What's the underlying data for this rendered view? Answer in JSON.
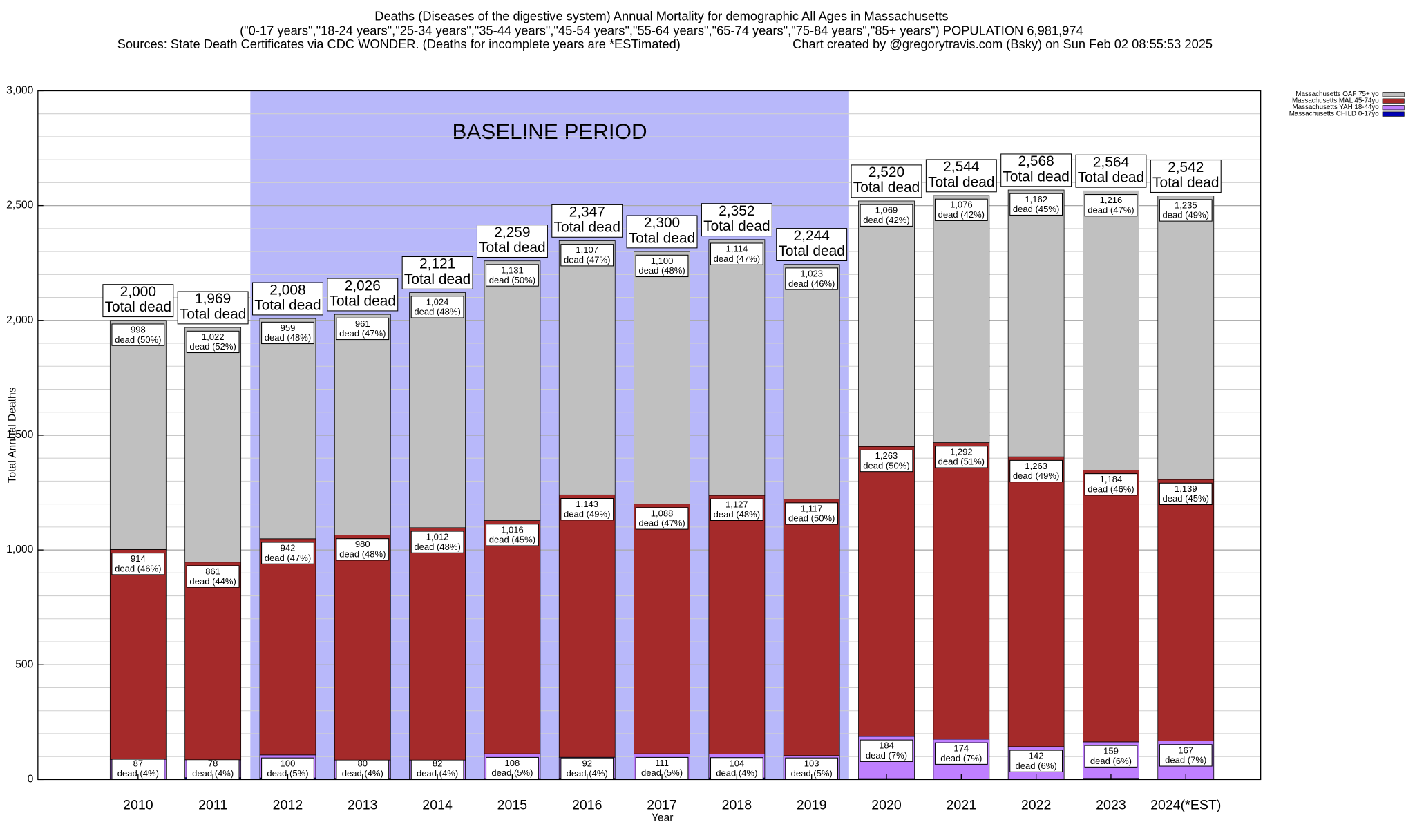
{
  "chart_data": {
    "type": "stacked_bar",
    "title": "Deaths (Diseases of the digestive system) Annual Mortality for demographic All Ages in Massachusetts",
    "subtitle": "(\"0-17 years\",\"18-24 years\",\"25-34 years\",\"35-44 years\",\"45-54 years\",\"55-64 years\",\"65-74 years\",\"75-84 years\",\"85+ years\") POPULATION 6,981,974",
    "source": "Sources: State Death Certificates via CDC WONDER. (Deaths for incomplete years are *ESTimated)",
    "credit": "Chart created by @gregorytravis.com (Bsky) on Sun Feb 02 08:55:53 2025",
    "xlabel": "Year",
    "ylabel": "Total Annual Deaths",
    "categories": [
      "2010",
      "2011",
      "2012",
      "2013",
      "2014",
      "2015",
      "2016",
      "2017",
      "2018",
      "2019",
      "2020",
      "2021",
      "2022",
      "2023",
      "2024(*EST)"
    ],
    "ylim": [
      0,
      3000
    ],
    "yticks": [
      0,
      500,
      {
        "value": 1000,
        "label": "1,000"
      },
      {
        "value": 1500,
        "label": "1,500"
      },
      {
        "value": 2000,
        "label": "2,000"
      },
      {
        "value": 2500,
        "label": "2,500"
      },
      {
        "value": 3000,
        "label": "3,000"
      }
    ],
    "grid": true,
    "minor_grid_step": 100,
    "legend": "upper right",
    "shaded_region": {
      "label": "BASELINE PERIOD",
      "from": "2012",
      "to": "2019",
      "color": "#b8b8fa"
    },
    "series": [
      {
        "name": "Massachusetts CHILD 0-17yo",
        "color": "#0000b4",
        "values": [
          1,
          8,
          7,
          5,
          3,
          4,
          5,
          1,
          7,
          1,
          4,
          2,
          1,
          5,
          1
        ]
      },
      {
        "name": "Massachusetts YAH 18-44yo",
        "color": "#bf7fff",
        "values": [
          87,
          78,
          100,
          80,
          82,
          108,
          92,
          111,
          104,
          103,
          184,
          174,
          142,
          159,
          167
        ],
        "value_labels": [
          [
            "87",
            "dead (4%)"
          ],
          [
            "78",
            "dead (4%)"
          ],
          [
            "100",
            "dead (5%)"
          ],
          [
            "80",
            "dead (4%)"
          ],
          [
            "82",
            "dead (4%)"
          ],
          [
            "108",
            "dead (5%)"
          ],
          [
            "92",
            "dead (4%)"
          ],
          [
            "111",
            "dead (5%)"
          ],
          [
            "104",
            "dead (4%)"
          ],
          [
            "103",
            "dead (5%)"
          ],
          [
            "184",
            "dead (7%)"
          ],
          [
            "174",
            "dead (7%)"
          ],
          [
            "142",
            "dead (6%)"
          ],
          [
            "159",
            "dead (6%)"
          ],
          [
            "167",
            "dead (7%)"
          ]
        ]
      },
      {
        "name": "Massachusetts MAL 45-74yo",
        "color": "#a52a2a",
        "values": [
          914,
          861,
          942,
          980,
          1012,
          1016,
          1143,
          1088,
          1127,
          1117,
          1263,
          1292,
          1263,
          1184,
          1139
        ],
        "value_labels": [
          [
            "914",
            "dead (46%)"
          ],
          [
            "861",
            "dead (44%)"
          ],
          [
            "942",
            "dead (47%)"
          ],
          [
            "980",
            "dead (48%)"
          ],
          [
            "1,012",
            "dead (48%)"
          ],
          [
            "1,016",
            "dead (45%)"
          ],
          [
            "1,143",
            "dead (49%)"
          ],
          [
            "1,088",
            "dead (47%)"
          ],
          [
            "1,127",
            "dead (48%)"
          ],
          [
            "1,117",
            "dead (50%)"
          ],
          [
            "1,263",
            "dead (50%)"
          ],
          [
            "1,292",
            "dead (51%)"
          ],
          [
            "1,263",
            "dead (49%)"
          ],
          [
            "1,184",
            "dead (46%)"
          ],
          [
            "1,139",
            "dead (45%)"
          ]
        ]
      },
      {
        "name": "Massachusetts OAF 75+ yo",
        "color": "#c0c0c0",
        "values": [
          998,
          1022,
          959,
          961,
          1024,
          1131,
          1107,
          1100,
          1114,
          1023,
          1069,
          1076,
          1162,
          1216,
          1235
        ],
        "value_labels": [
          [
            "998",
            "dead (50%)"
          ],
          [
            "1,022",
            "dead (52%)"
          ],
          [
            "959",
            "dead (48%)"
          ],
          [
            "961",
            "dead (47%)"
          ],
          [
            "1,024",
            "dead (48%)"
          ],
          [
            "1,131",
            "dead (50%)"
          ],
          [
            "1,107",
            "dead (47%)"
          ],
          [
            "1,100",
            "dead (48%)"
          ],
          [
            "1,114",
            "dead (47%)"
          ],
          [
            "1,023",
            "dead (46%)"
          ],
          [
            "1,069",
            "dead (42%)"
          ],
          [
            "1,076",
            "dead (42%)"
          ],
          [
            "1,162",
            "dead (45%)"
          ],
          [
            "1,216",
            "dead (47%)"
          ],
          [
            "1,235",
            "dead (49%)"
          ]
        ]
      }
    ],
    "totals": [
      2000,
      1969,
      2008,
      2026,
      2121,
      2259,
      2347,
      2300,
      2352,
      2244,
      2520,
      2544,
      2568,
      2564,
      2542
    ],
    "total_labels": [
      "2,000",
      "1,969",
      "2,008",
      "2,026",
      "2,121",
      "2,259",
      "2,347",
      "2,300",
      "2,352",
      "2,244",
      "2,520",
      "2,544",
      "2,568",
      "2,564",
      "2,542"
    ],
    "total_caption": "Total dead"
  }
}
